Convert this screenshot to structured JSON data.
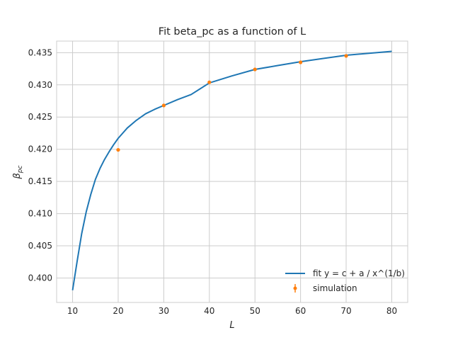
{
  "chart_data": {
    "type": "line",
    "title": "Fit beta_pc as a function of L",
    "xlabel": "L",
    "ylabel": "β_pc",
    "ylabel_main": "β",
    "ylabel_sub": "pc",
    "xlim": [
      6.5,
      83.5
    ],
    "ylim": [
      0.3962,
      0.4368
    ],
    "x_ticks": [
      10,
      20,
      30,
      40,
      50,
      60,
      70,
      80
    ],
    "y_ticks": [
      0.4,
      0.405,
      0.41,
      0.415,
      0.42,
      0.425,
      0.43,
      0.435
    ],
    "x_tick_labels": [
      "10",
      "20",
      "30",
      "40",
      "50",
      "60",
      "70",
      "80"
    ],
    "y_tick_labels": [
      "0.400",
      "0.405",
      "0.410",
      "0.415",
      "0.420",
      "0.425",
      "0.430",
      "0.435"
    ],
    "grid": true,
    "legend_position": "lower-right",
    "series": [
      {
        "name": "fit y = c + a / x^(1/b)",
        "kind": "line",
        "color": "#1f77b4",
        "x": [
          10,
          11,
          12,
          13,
          14,
          15,
          16,
          17,
          18,
          19,
          20,
          22,
          24,
          26,
          28,
          30,
          33,
          36,
          40,
          45,
          50,
          55,
          60,
          65,
          70,
          75,
          80
        ],
        "y": [
          0.3981,
          0.4026,
          0.4069,
          0.4103,
          0.413,
          0.4153,
          0.417,
          0.4184,
          0.4196,
          0.4207,
          0.4217,
          0.4233,
          0.4245,
          0.4255,
          0.4262,
          0.4268,
          0.4277,
          0.4285,
          0.4303,
          0.4314,
          0.4324,
          0.433,
          0.4336,
          0.4341,
          0.4346,
          0.4349,
          0.4352
        ]
      },
      {
        "name": "simulation",
        "kind": "errorbar",
        "color": "#ff7f0e",
        "x": [
          20,
          30,
          40,
          50,
          60,
          70
        ],
        "y": [
          0.4199,
          0.4268,
          0.4304,
          0.4324,
          0.4335,
          0.4345
        ]
      }
    ]
  }
}
